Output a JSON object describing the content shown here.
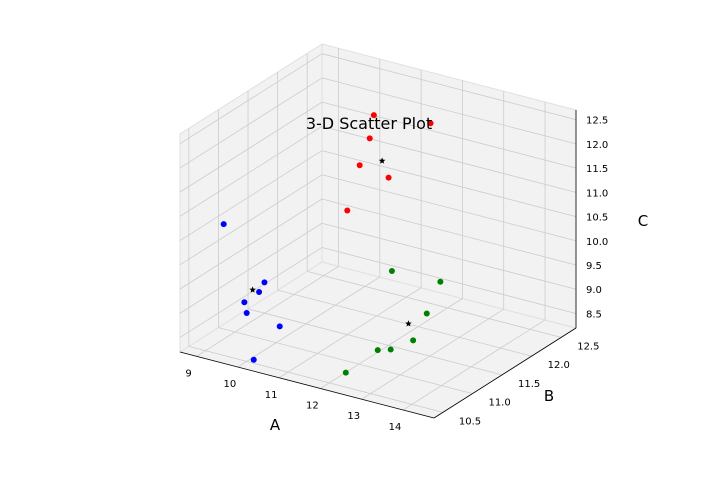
{
  "chart_data": {
    "type": "scatter",
    "title": "3-D Scatter Plot",
    "xlabel": "A",
    "ylabel": "B",
    "zlabel": "C",
    "x_ticks": [
      "9",
      "10",
      "11",
      "12",
      "13",
      "14"
    ],
    "y_ticks": [
      "10.5",
      "11.0",
      "11.5",
      "12.0",
      "12.5"
    ],
    "z_ticks": [
      "8.5",
      "9.0",
      "9.5",
      "10.0",
      "10.5",
      "11.0",
      "11.5",
      "12.0",
      "12.5"
    ],
    "grid": true,
    "colors": {
      "blue": "#0000ff",
      "red": "#ff0000",
      "green": "#008000",
      "star": "#000000",
      "pane": "#f2f2f2",
      "grid": "#cccccc"
    },
    "series": [
      {
        "color": "#0000ff",
        "marker": "circle",
        "points": [
          [
            9.3,
            10.6,
            10.8
          ],
          [
            10.0,
            10.8,
            9.6
          ],
          [
            10.3,
            10.5,
            9.7
          ],
          [
            10.0,
            10.5,
            9.2
          ],
          [
            9.8,
            10.6,
            9.3
          ],
          [
            10.6,
            10.2,
            8.6
          ],
          [
            10.8,
            10.5,
            9.1
          ]
        ]
      },
      {
        "color": "#ff0000",
        "marker": "circle",
        "points": [
          [
            10.5,
            12.3,
            12.0
          ],
          [
            10.4,
            12.3,
            11.5
          ],
          [
            10.3,
            12.2,
            11.0
          ],
          [
            11.3,
            12.7,
            11.7
          ],
          [
            11.0,
            12.2,
            10.9
          ],
          [
            10.0,
            12.2,
            10.0
          ]
        ]
      },
      {
        "color": "#008000",
        "marker": "circle",
        "points": [
          [
            12.8,
            11.0,
            10.3
          ],
          [
            13.4,
            11.4,
            9.9
          ],
          [
            13.5,
            11.1,
            9.5
          ],
          [
            13.6,
            10.8,
            9.2
          ],
          [
            13.2,
            10.7,
            9.0
          ],
          [
            12.6,
            10.9,
            8.7
          ],
          [
            12.4,
            10.5,
            8.5
          ]
        ]
      },
      {
        "color": "#000000",
        "marker": "star",
        "points": [
          [
            10.0,
            10.6,
            9.6
          ],
          [
            10.7,
            12.3,
            11.1
          ],
          [
            13.2,
            11.0,
            9.3
          ]
        ]
      }
    ]
  }
}
